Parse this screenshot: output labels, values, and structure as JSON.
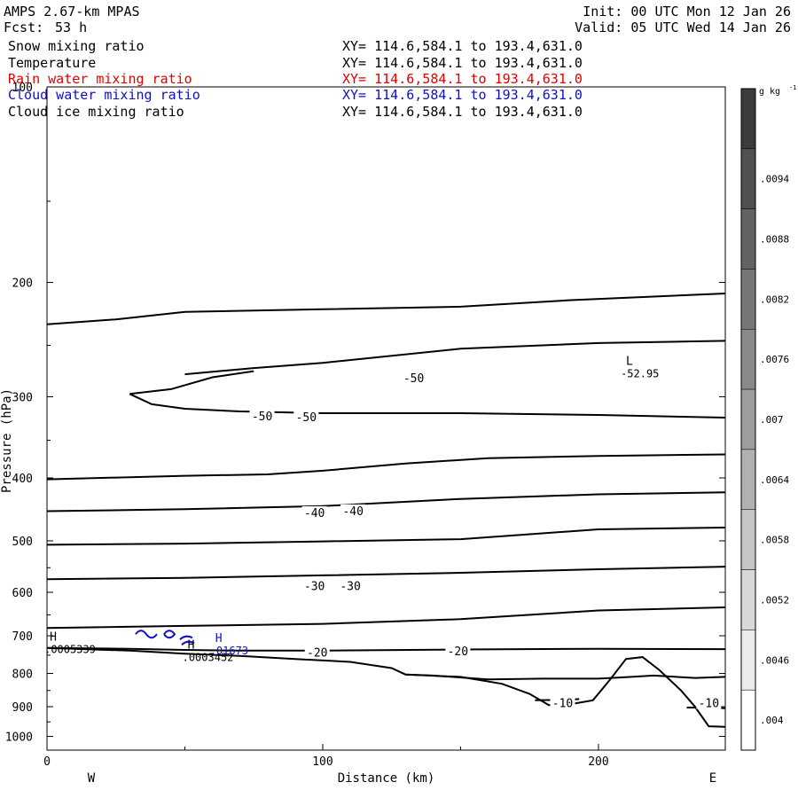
{
  "header": {
    "model": "AMPS 2.67-km MPAS",
    "fcst_label": "Fcst:",
    "fcst_hours": "53 h",
    "init": "Init: 00 UTC Mon 12 Jan 26",
    "valid": "Valid: 05 UTC Wed 14 Jan 26"
  },
  "fields": [
    {
      "name": "Snow mixing ratio",
      "xy": "XY= 114.6,584.1 to 193.4,631.0",
      "color": "#000000"
    },
    {
      "name": "Temperature",
      "xy": "XY= 114.6,584.1 to 193.4,631.0",
      "color": "#000000"
    },
    {
      "name": "Rain water mixing ratio",
      "xy": "XY= 114.6,584.1 to 193.4,631.0",
      "color": "#e00000"
    },
    {
      "name": "Cloud water mixing ratio",
      "xy": "XY= 114.6,584.1 to 193.4,631.0",
      "color": "#1010c8"
    },
    {
      "name": "Cloud ice mixing ratio",
      "xy": "XY= 114.6,584.1 to 193.4,631.0",
      "color": "#000000"
    }
  ],
  "chart_data": {
    "type": "contour-cross-section",
    "ylabel": "Pressure (hPa)",
    "xlabel": "Distance (km)",
    "xlim": [
      0,
      246
    ],
    "ylim": [
      1050,
      100
    ],
    "x_ticks": [
      0,
      100,
      200
    ],
    "y_ticks": [
      200,
      300,
      400,
      500,
      600,
      700,
      800,
      900,
      1000
    ],
    "y_tick_labels": [
      "200",
      "300",
      "400",
      "500",
      "600",
      "700",
      "800",
      "900",
      "1000"
    ],
    "y_top_label": "100",
    "x_ends": {
      "left": "W",
      "right": "E"
    },
    "isotherms": [
      {
        "points": [
          [
            0,
            232
          ],
          [
            25,
            228
          ],
          [
            50,
            222
          ],
          [
            100,
            220
          ],
          [
            150,
            218
          ],
          [
            190,
            213
          ],
          [
            246,
            208
          ]
        ]
      },
      {
        "points": [
          [
            50,
            277
          ],
          [
            75,
            271
          ],
          [
            100,
            266
          ],
          [
            150,
            253
          ],
          [
            200,
            248
          ],
          [
            246,
            246
          ]
        ]
      },
      {
        "points": [
          [
            30,
            297
          ],
          [
            45,
            292
          ],
          [
            60,
            280
          ],
          [
            75,
            274
          ]
        ]
      },
      {
        "points": [
          [
            30,
            297
          ],
          [
            38,
            308
          ],
          [
            50,
            313
          ],
          [
            70,
            316
          ],
          [
            100,
            318
          ],
          [
            150,
            318
          ],
          [
            200,
            320
          ],
          [
            246,
            323
          ]
        ]
      },
      {
        "points": [
          [
            0,
            402
          ],
          [
            50,
            397
          ],
          [
            80,
            395
          ],
          [
            100,
            390
          ],
          [
            130,
            380
          ],
          [
            160,
            373
          ],
          [
            200,
            370
          ],
          [
            246,
            368
          ]
        ]
      },
      {
        "points": [
          [
            0,
            450
          ],
          [
            50,
            447
          ],
          [
            100,
            442
          ],
          [
            150,
            431
          ],
          [
            200,
            424
          ],
          [
            246,
            421
          ]
        ]
      },
      {
        "points": [
          [
            0,
            507
          ],
          [
            50,
            505
          ],
          [
            100,
            501
          ],
          [
            150,
            497
          ],
          [
            200,
            480
          ],
          [
            246,
            477
          ]
        ]
      },
      {
        "points": [
          [
            0,
            573
          ],
          [
            50,
            570
          ],
          [
            100,
            565
          ],
          [
            150,
            560
          ],
          [
            200,
            553
          ],
          [
            246,
            548
          ]
        ]
      },
      {
        "points": [
          [
            0,
            681
          ],
          [
            50,
            676
          ],
          [
            100,
            671
          ],
          [
            150,
            660
          ],
          [
            200,
            640
          ],
          [
            246,
            633
          ]
        ]
      },
      {
        "points": [
          [
            0,
            731
          ],
          [
            30,
            733
          ],
          [
            50,
            736
          ],
          [
            70,
            738
          ],
          [
            100,
            738
          ],
          [
            150,
            735
          ],
          [
            200,
            733
          ],
          [
            246,
            734
          ]
        ]
      },
      {
        "points": [
          [
            130,
            803
          ],
          [
            140,
            806
          ],
          [
            160,
            817
          ],
          [
            180,
            815
          ],
          [
            200,
            815
          ],
          [
            212,
            810
          ],
          [
            220,
            806
          ],
          [
            235,
            813
          ],
          [
            246,
            810
          ]
        ]
      },
      {
        "points": [
          [
            177,
            880
          ],
          [
            190,
            878
          ],
          [
            193,
            876
          ]
        ]
      },
      {
        "points": [
          [
            232,
            903
          ],
          [
            240,
            903
          ],
          [
            246,
            905
          ]
        ]
      }
    ],
    "contour_labels": [
      {
        "x": 133,
        "p": 282,
        "text": "-50"
      },
      {
        "x": 78,
        "p": 323,
        "text": "-50"
      },
      {
        "x": 94,
        "p": 324,
        "text": "-50"
      },
      {
        "x": 97,
        "p": 455,
        "text": "-40"
      },
      {
        "x": 111,
        "p": 452,
        "text": "-40"
      },
      {
        "x": 97,
        "p": 590,
        "text": "-30"
      },
      {
        "x": 110,
        "p": 590,
        "text": "-30"
      },
      {
        "x": 98,
        "p": 747,
        "text": "-20"
      },
      {
        "x": 149,
        "p": 743,
        "text": "-20"
      },
      {
        "x": 187,
        "p": 893,
        "text": "-10"
      },
      {
        "x": 240,
        "p": 893,
        "text": "-10"
      }
    ],
    "extrema": [
      {
        "x": 210,
        "p": 268,
        "text": "L",
        "value": "-52.95",
        "color": "#000000"
      },
      {
        "x": 1,
        "p": 712,
        "text": "H",
        "value": ".0005339",
        "color": "#000000"
      },
      {
        "x": 51,
        "p": 733,
        "text": "H",
        "value": ".0003452",
        "color": "#000000"
      },
      {
        "x": 61,
        "p": 715,
        "text": "H",
        "value": ".01673",
        "color": "#1010c8"
      }
    ],
    "terrain": [
      [
        0,
        731
      ],
      [
        30,
        738
      ],
      [
        50,
        746
      ],
      [
        70,
        752
      ],
      [
        90,
        760
      ],
      [
        110,
        768
      ],
      [
        125,
        785
      ],
      [
        130,
        803
      ],
      [
        150,
        810
      ],
      [
        165,
        830
      ],
      [
        175,
        860
      ],
      [
        182,
        895
      ],
      [
        190,
        892
      ],
      [
        198,
        880
      ],
      [
        204,
        820
      ],
      [
        210,
        760
      ],
      [
        216,
        755
      ],
      [
        222,
        790
      ],
      [
        230,
        850
      ],
      [
        235,
        900
      ],
      [
        240,
        965
      ],
      [
        246,
        967
      ]
    ],
    "colorbar": {
      "unit": "g kg",
      "unit_exp": "-1",
      "tick_labels": [
        ".0094",
        ".0088",
        ".0082",
        ".0076",
        ".007",
        ".0064",
        ".0058",
        ".0052",
        ".0046",
        ".004"
      ]
    }
  }
}
